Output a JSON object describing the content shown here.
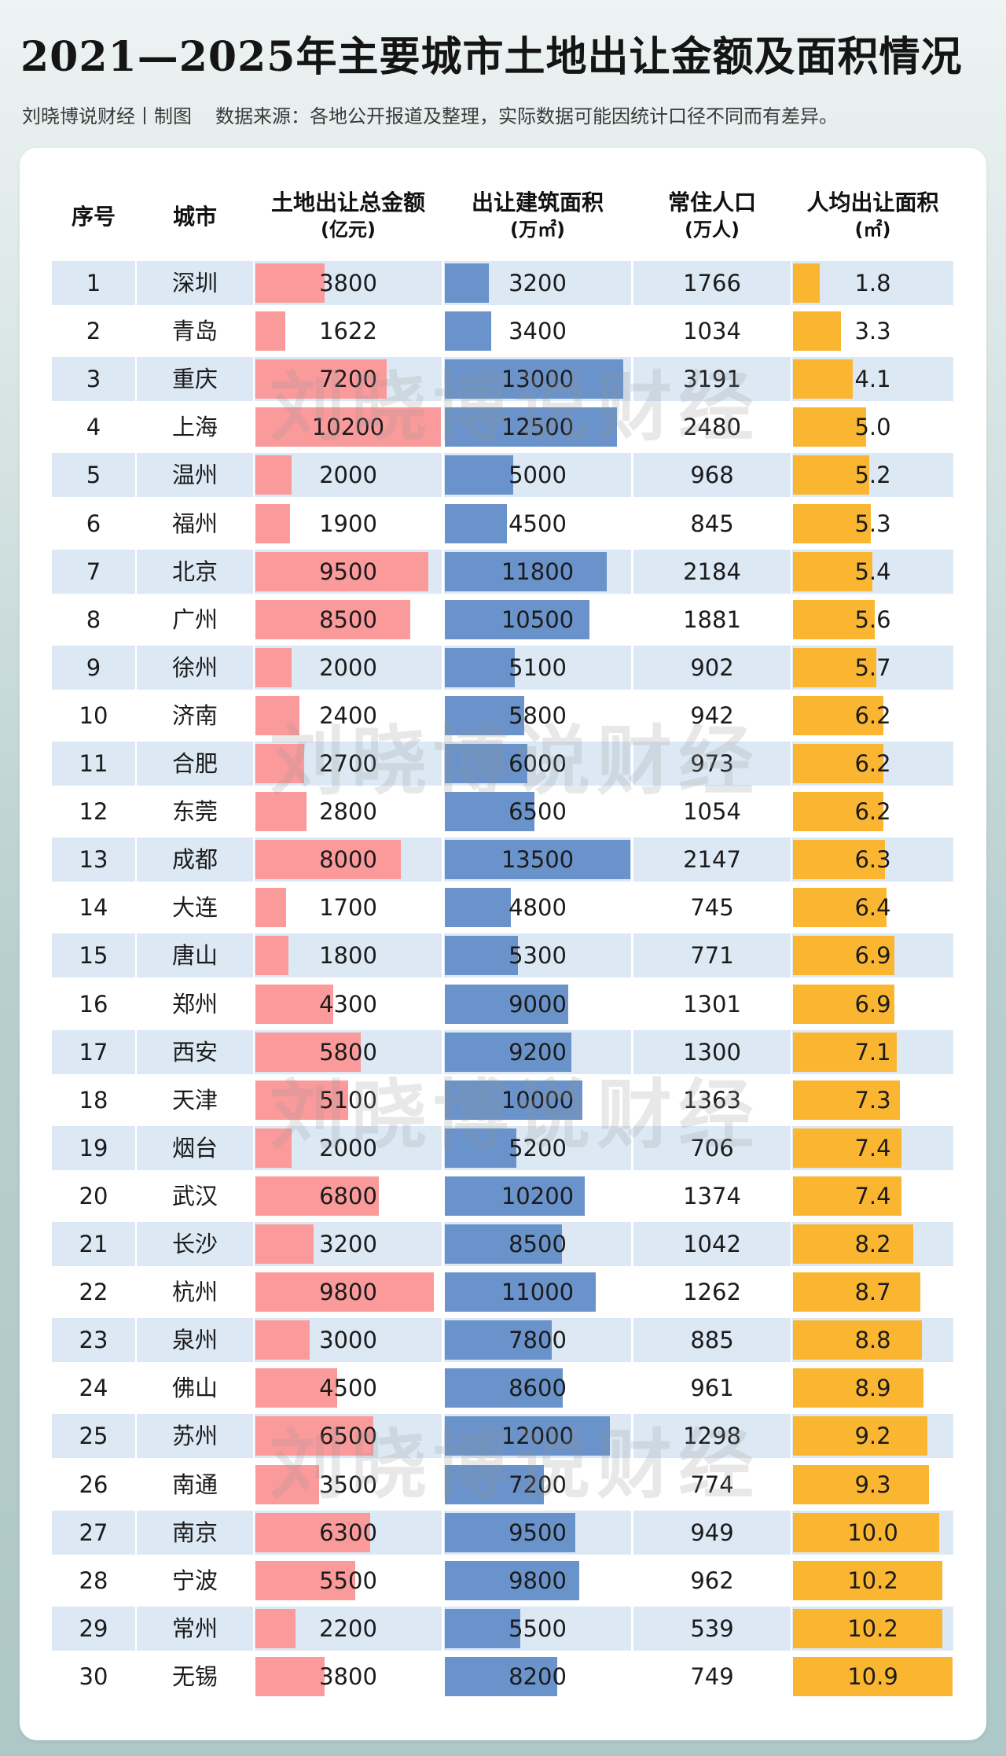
{
  "header": {
    "title": "2021—2025年主要城市土地出让金额及面积情况",
    "author": "刘晓博说财经丨制图",
    "source": "数据来源：各地公开报道及整理，实际数据可能因统计口径不同而有差异。"
  },
  "watermark": "刘晓博说财经",
  "colors": {
    "amount_bar": "#fb9a9b",
    "area_bar": "#6a93cb",
    "per_capita_bar": "#fbb631",
    "row_stripe": "#dce9f5"
  },
  "chart_data": {
    "type": "table",
    "columns": [
      {
        "label": "序号",
        "unit": ""
      },
      {
        "label": "城市",
        "unit": ""
      },
      {
        "label": "土地出让总金额",
        "unit": "(亿元)"
      },
      {
        "label": "出让建筑面积",
        "unit": "(万㎡)"
      },
      {
        "label": "常住人口",
        "unit": "(万人)"
      },
      {
        "label": "人均出让面积",
        "unit": "(㎡)"
      }
    ],
    "bar_max": {
      "amount": 10200,
      "area": 13500,
      "per_capita": 10.9
    },
    "rows": [
      {
        "rank": "1",
        "city": "深圳",
        "amount": "3800",
        "area": "3200",
        "population": "1766",
        "per_capita": "1.8"
      },
      {
        "rank": "2",
        "city": "青岛",
        "amount": "1622",
        "area": "3400",
        "population": "1034",
        "per_capita": "3.3"
      },
      {
        "rank": "3",
        "city": "重庆",
        "amount": "7200",
        "area": "13000",
        "population": "3191",
        "per_capita": "4.1"
      },
      {
        "rank": "4",
        "city": "上海",
        "amount": "10200",
        "area": "12500",
        "population": "2480",
        "per_capita": "5.0"
      },
      {
        "rank": "5",
        "city": "温州",
        "amount": "2000",
        "area": "5000",
        "population": "968",
        "per_capita": "5.2"
      },
      {
        "rank": "6",
        "city": "福州",
        "amount": "1900",
        "area": "4500",
        "population": "845",
        "per_capita": "5.3"
      },
      {
        "rank": "7",
        "city": "北京",
        "amount": "9500",
        "area": "11800",
        "population": "2184",
        "per_capita": "5.4"
      },
      {
        "rank": "8",
        "city": "广州",
        "amount": "8500",
        "area": "10500",
        "population": "1881",
        "per_capita": "5.6"
      },
      {
        "rank": "9",
        "city": "徐州",
        "amount": "2000",
        "area": "5100",
        "population": "902",
        "per_capita": "5.7"
      },
      {
        "rank": "10",
        "city": "济南",
        "amount": "2400",
        "area": "5800",
        "population": "942",
        "per_capita": "6.2"
      },
      {
        "rank": "11",
        "city": "合肥",
        "amount": "2700",
        "area": "6000",
        "population": "973",
        "per_capita": "6.2"
      },
      {
        "rank": "12",
        "city": "东莞",
        "amount": "2800",
        "area": "6500",
        "population": "1054",
        "per_capita": "6.2"
      },
      {
        "rank": "13",
        "city": "成都",
        "amount": "8000",
        "area": "13500",
        "population": "2147",
        "per_capita": "6.3"
      },
      {
        "rank": "14",
        "city": "大连",
        "amount": "1700",
        "area": "4800",
        "population": "745",
        "per_capita": "6.4"
      },
      {
        "rank": "15",
        "city": "唐山",
        "amount": "1800",
        "area": "5300",
        "population": "771",
        "per_capita": "6.9"
      },
      {
        "rank": "16",
        "city": "郑州",
        "amount": "4300",
        "area": "9000",
        "population": "1301",
        "per_capita": "6.9"
      },
      {
        "rank": "17",
        "city": "西安",
        "amount": "5800",
        "area": "9200",
        "population": "1300",
        "per_capita": "7.1"
      },
      {
        "rank": "18",
        "city": "天津",
        "amount": "5100",
        "area": "10000",
        "population": "1363",
        "per_capita": "7.3"
      },
      {
        "rank": "19",
        "city": "烟台",
        "amount": "2000",
        "area": "5200",
        "population": "706",
        "per_capita": "7.4"
      },
      {
        "rank": "20",
        "city": "武汉",
        "amount": "6800",
        "area": "10200",
        "population": "1374",
        "per_capita": "7.4"
      },
      {
        "rank": "21",
        "city": "长沙",
        "amount": "3200",
        "area": "8500",
        "population": "1042",
        "per_capita": "8.2"
      },
      {
        "rank": "22",
        "city": "杭州",
        "amount": "9800",
        "area": "11000",
        "population": "1262",
        "per_capita": "8.7"
      },
      {
        "rank": "23",
        "city": "泉州",
        "amount": "3000",
        "area": "7800",
        "population": "885",
        "per_capita": "8.8"
      },
      {
        "rank": "24",
        "city": "佛山",
        "amount": "4500",
        "area": "8600",
        "population": "961",
        "per_capita": "8.9"
      },
      {
        "rank": "25",
        "city": "苏州",
        "amount": "6500",
        "area": "12000",
        "population": "1298",
        "per_capita": "9.2"
      },
      {
        "rank": "26",
        "city": "南通",
        "amount": "3500",
        "area": "7200",
        "population": "774",
        "per_capita": "9.3"
      },
      {
        "rank": "27",
        "city": "南京",
        "amount": "6300",
        "area": "9500",
        "population": "949",
        "per_capita": "10.0"
      },
      {
        "rank": "28",
        "city": "宁波",
        "amount": "5500",
        "area": "9800",
        "population": "962",
        "per_capita": "10.2"
      },
      {
        "rank": "29",
        "city": "常州",
        "amount": "2200",
        "area": "5500",
        "population": "539",
        "per_capita": "10.2"
      },
      {
        "rank": "30",
        "city": "无锡",
        "amount": "3800",
        "area": "8200",
        "population": "749",
        "per_capita": "10.9"
      }
    ]
  }
}
